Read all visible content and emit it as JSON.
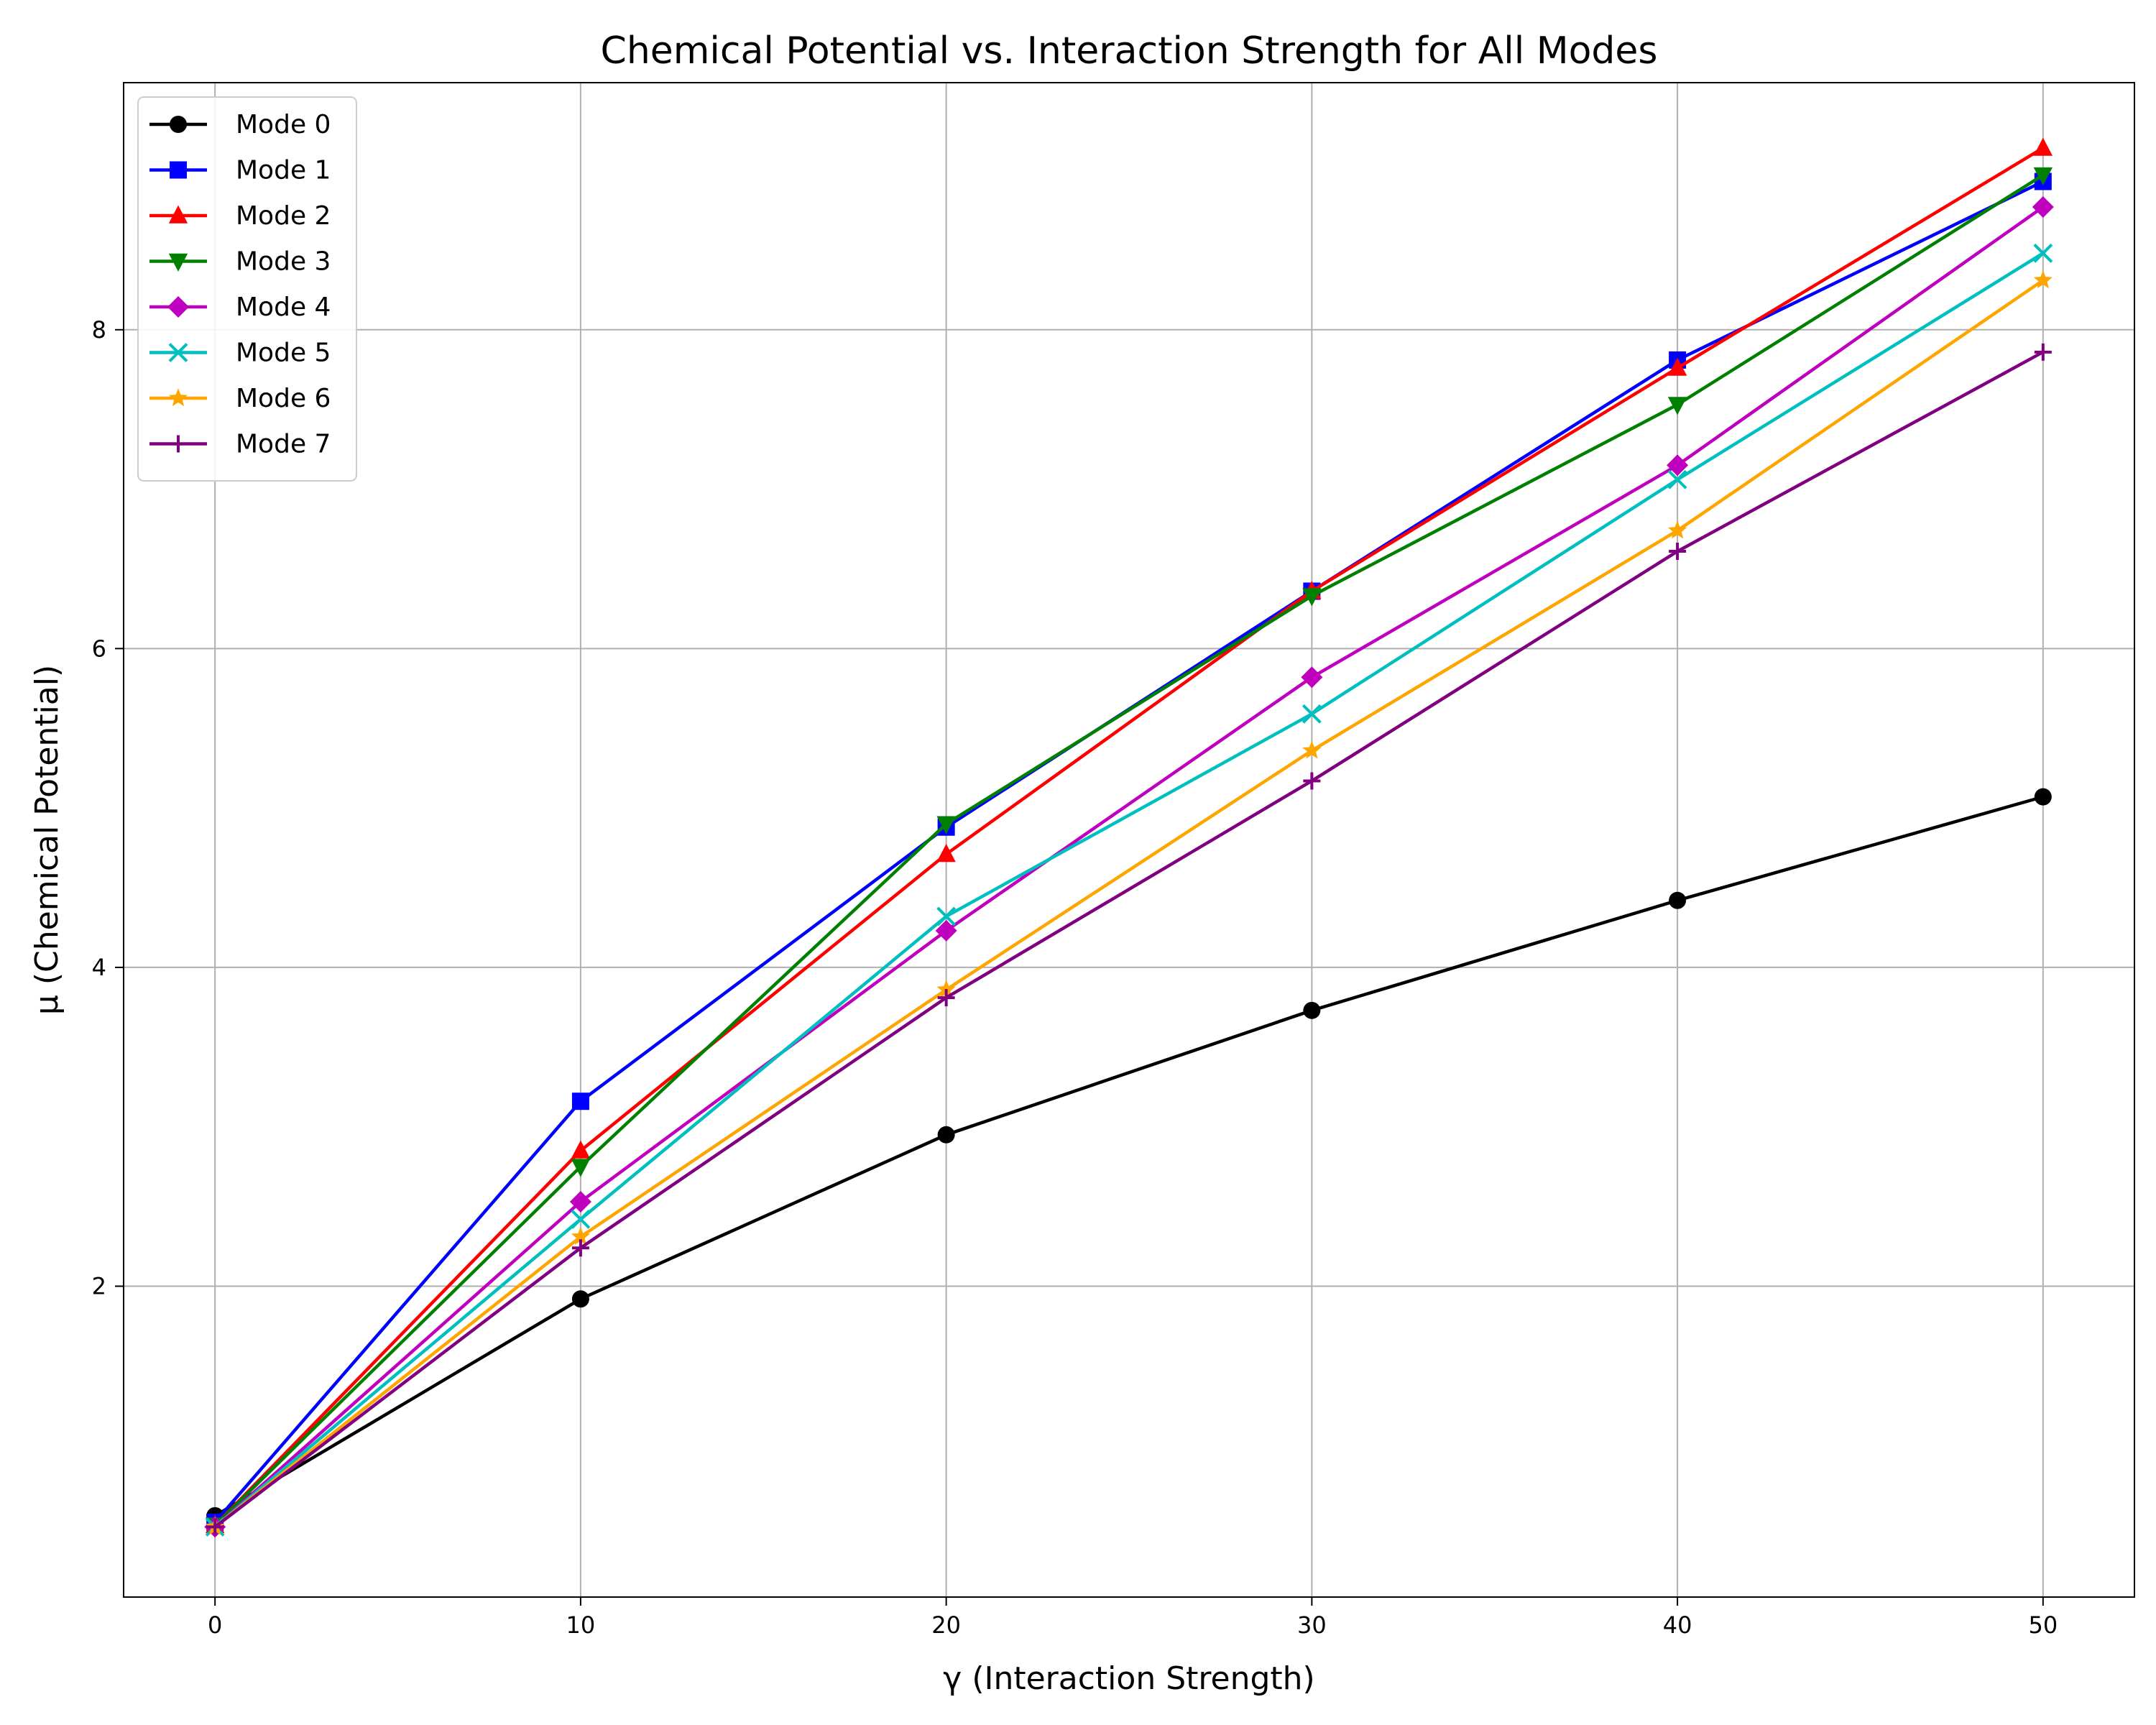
{
  "chart_data": {
    "type": "line",
    "title": "Chemical Potential vs. Interaction Strength for All Modes",
    "xlabel": "γ (Interaction Strength)",
    "ylabel": "μ (Chemical Potential)",
    "x": [
      0,
      10,
      20,
      30,
      40,
      50
    ],
    "xlim": [
      -2.5,
      52.5
    ],
    "ylim": [
      0.05,
      9.55
    ],
    "xticks": [
      0,
      10,
      20,
      30,
      40,
      50
    ],
    "yticks": [
      2,
      4,
      6,
      8
    ],
    "grid": true,
    "legend_position": "top-left",
    "series": [
      {
        "name": "Mode 0",
        "color": "#000000",
        "marker": "circle",
        "values": [
          0.56,
          1.92,
          2.95,
          3.73,
          4.42,
          5.07
        ]
      },
      {
        "name": "Mode 1",
        "color": "#0000ff",
        "marker": "square",
        "values": [
          0.52,
          3.16,
          4.88,
          6.36,
          7.81,
          8.93
        ]
      },
      {
        "name": "Mode 2",
        "color": "#ff0000",
        "marker": "triangle-up",
        "values": [
          0.5,
          2.85,
          4.71,
          6.36,
          7.76,
          9.14
        ]
      },
      {
        "name": "Mode 3",
        "color": "#008000",
        "marker": "triangle-down",
        "values": [
          0.5,
          2.75,
          4.9,
          6.33,
          7.53,
          8.97
        ]
      },
      {
        "name": "Mode 4",
        "color": "#bf00bf",
        "marker": "diamond",
        "values": [
          0.49,
          2.53,
          4.23,
          5.82,
          7.15,
          8.77
        ]
      },
      {
        "name": "Mode 5",
        "color": "#00bfbf",
        "marker": "x",
        "values": [
          0.49,
          2.42,
          4.32,
          5.59,
          7.06,
          8.48
        ]
      },
      {
        "name": "Mode 6",
        "color": "#ffa500",
        "marker": "star",
        "values": [
          0.49,
          2.31,
          3.86,
          5.36,
          6.74,
          8.31
        ]
      },
      {
        "name": "Mode 7",
        "color": "#800080",
        "marker": "plus",
        "values": [
          0.49,
          2.24,
          3.81,
          5.17,
          6.61,
          7.86
        ]
      }
    ]
  }
}
